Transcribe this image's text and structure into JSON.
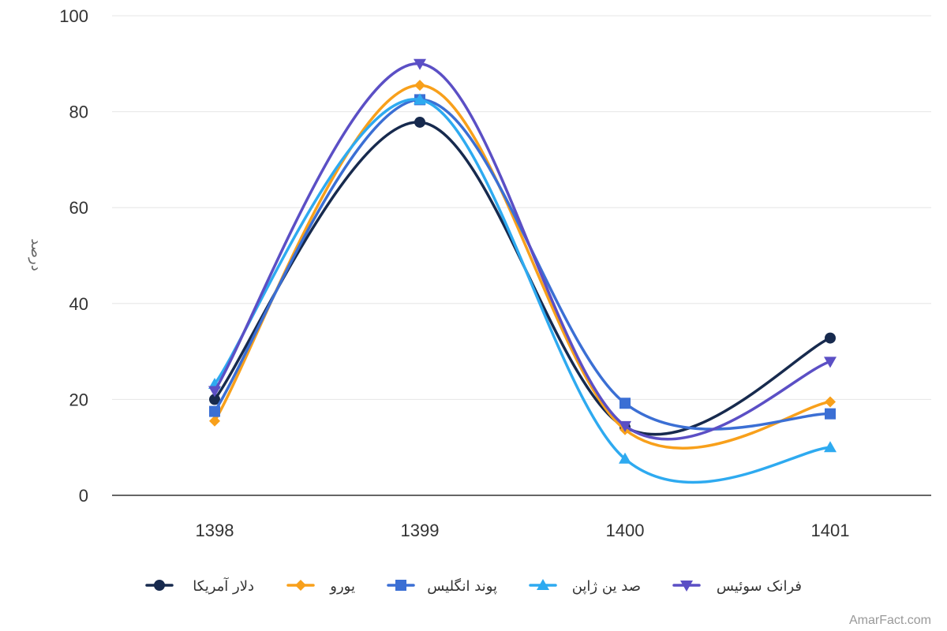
{
  "chart_data": {
    "type": "line",
    "categories": [
      "1398",
      "1399",
      "1400",
      "1401"
    ],
    "ylabel": "درصد",
    "ylim": [
      0,
      100
    ],
    "yticks": [
      0,
      20,
      40,
      60,
      80,
      100
    ],
    "grid": true,
    "legend_position": "bottom",
    "series": [
      {
        "name": "دلار آمریکا",
        "color": "#172a4e",
        "marker": "circle",
        "values": [
          20,
          77.8,
          14.2,
          32.8
        ]
      },
      {
        "name": "یورو",
        "color": "#f8a01b",
        "marker": "diamond",
        "values": [
          15.5,
          85.5,
          13.7,
          19.5
        ]
      },
      {
        "name": "پوند انگلیس",
        "color": "#3b6fd4",
        "marker": "square",
        "values": [
          17.5,
          82.5,
          19.2,
          17.0
        ]
      },
      {
        "name": "صد ین ژاپن",
        "color": "#2eaaf0",
        "marker": "triangle",
        "values": [
          23.2,
          82.5,
          7.6,
          10.0
        ]
      },
      {
        "name": "فرانک سوئیس",
        "color": "#5b4fc5",
        "marker": "triangle-down",
        "values": [
          21.8,
          90.0,
          14.5,
          27.9
        ]
      }
    ]
  },
  "credit": "AmarFact.com"
}
